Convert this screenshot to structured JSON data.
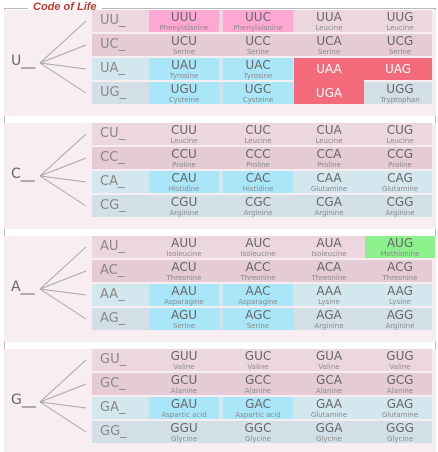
{
  "title": "Code of Life",
  "colors": {
    "phenylalanine": "#ffa8d4",
    "polar": "#a8e6f8",
    "stop": "#f36b7b",
    "start": "#8cf08c",
    "row_a": "#ecd7e0",
    "row_b": "#e4cbd6",
    "row_c": "#d2e7ee",
    "row_d": "#d3dfe6"
  },
  "blocks": [
    {
      "first": "U__",
      "rows": [
        {
          "prefix": "UU_",
          "cells": [
            {
              "codon": "UUU",
              "aa": "Phenylalanine"
            },
            {
              "codon": "UUC",
              "aa": "Phenylalanine"
            },
            {
              "codon": "UUA",
              "aa": "Leucine"
            },
            {
              "codon": "UUG",
              "aa": "Leucine"
            }
          ]
        },
        {
          "prefix": "UC_",
          "cells": [
            {
              "codon": "UCU",
              "aa": "Serine"
            },
            {
              "codon": "UCC",
              "aa": "Serine"
            },
            {
              "codon": "UCA",
              "aa": "Serine"
            },
            {
              "codon": "UCG",
              "aa": "Serine"
            }
          ]
        },
        {
          "prefix": "UA_",
          "cells": [
            {
              "codon": "UAU",
              "aa": "Tyrosine"
            },
            {
              "codon": "UAC",
              "aa": "Tyrosine"
            },
            {
              "codon": "UAA",
              "aa": ""
            },
            {
              "codon": "UAG",
              "aa": ""
            }
          ]
        },
        {
          "prefix": "UG_",
          "cells": [
            {
              "codon": "UGU",
              "aa": "Cysteine"
            },
            {
              "codon": "UGC",
              "aa": "Cysteine"
            },
            {
              "codon": "UGA",
              "aa": ""
            },
            {
              "codon": "UGG",
              "aa": "Tryptophan"
            }
          ]
        }
      ]
    },
    {
      "first": "C__",
      "rows": [
        {
          "prefix": "CU_",
          "cells": [
            {
              "codon": "CUU",
              "aa": "Leucine"
            },
            {
              "codon": "CUC",
              "aa": "Leucine"
            },
            {
              "codon": "CUA",
              "aa": "Leucine"
            },
            {
              "codon": "CUG",
              "aa": "Leucine"
            }
          ]
        },
        {
          "prefix": "CC_",
          "cells": [
            {
              "codon": "CCU",
              "aa": "Proline"
            },
            {
              "codon": "CCC",
              "aa": "Proline"
            },
            {
              "codon": "CCA",
              "aa": "Proline"
            },
            {
              "codon": "CCG",
              "aa": "Proline"
            }
          ]
        },
        {
          "prefix": "CA_",
          "cells": [
            {
              "codon": "CAU",
              "aa": "Histidine"
            },
            {
              "codon": "CAC",
              "aa": "Histidine"
            },
            {
              "codon": "CAA",
              "aa": "Glutamine"
            },
            {
              "codon": "CAG",
              "aa": "Glutamine"
            }
          ]
        },
        {
          "prefix": "CG_",
          "cells": [
            {
              "codon": "CGU",
              "aa": "Arginine"
            },
            {
              "codon": "CGC",
              "aa": "Arginine"
            },
            {
              "codon": "CGA",
              "aa": "Arginine"
            },
            {
              "codon": "CGG",
              "aa": "Arginine"
            }
          ]
        }
      ]
    },
    {
      "first": "A__",
      "rows": [
        {
          "prefix": "AU_",
          "cells": [
            {
              "codon": "AUU",
              "aa": "Isoleucine"
            },
            {
              "codon": "AUC",
              "aa": "Isoleucine"
            },
            {
              "codon": "AUA",
              "aa": "Isoleucine"
            },
            {
              "codon": "AUG",
              "aa": "Methionine"
            }
          ]
        },
        {
          "prefix": "AC_",
          "cells": [
            {
              "codon": "ACU",
              "aa": "Threonine"
            },
            {
              "codon": "ACC",
              "aa": "Threonine"
            },
            {
              "codon": "ACA",
              "aa": "Threonine"
            },
            {
              "codon": "ACG",
              "aa": "Threonine"
            }
          ]
        },
        {
          "prefix": "AA_",
          "cells": [
            {
              "codon": "AAU",
              "aa": "Asparagine"
            },
            {
              "codon": "AAC",
              "aa": "Asparagine"
            },
            {
              "codon": "AAA",
              "aa": "Lysine"
            },
            {
              "codon": "AAG",
              "aa": "Lysine"
            }
          ]
        },
        {
          "prefix": "AG_",
          "cells": [
            {
              "codon": "AGU",
              "aa": "Serine"
            },
            {
              "codon": "AGC",
              "aa": "Serine"
            },
            {
              "codon": "AGA",
              "aa": "Arginine"
            },
            {
              "codon": "AGG",
              "aa": "Arginine"
            }
          ]
        }
      ]
    },
    {
      "first": "G__",
      "rows": [
        {
          "prefix": "GU_",
          "cells": [
            {
              "codon": "GUU",
              "aa": "Valine"
            },
            {
              "codon": "GUC",
              "aa": "Valine"
            },
            {
              "codon": "GUA",
              "aa": "Valine"
            },
            {
              "codon": "GUG",
              "aa": "Valine"
            }
          ]
        },
        {
          "prefix": "GC_",
          "cells": [
            {
              "codon": "GCU",
              "aa": "Alanine"
            },
            {
              "codon": "GCC",
              "aa": "Alanine"
            },
            {
              "codon": "GCA",
              "aa": "Alanine"
            },
            {
              "codon": "GCG",
              "aa": "Alanine"
            }
          ]
        },
        {
          "prefix": "GA_",
          "cells": [
            {
              "codon": "GAU",
              "aa": "Aspartic acid"
            },
            {
              "codon": "GAC",
              "aa": "Aspartic acid"
            },
            {
              "codon": "GAA",
              "aa": "Glutamine"
            },
            {
              "codon": "GAG",
              "aa": "Glutamine"
            }
          ]
        },
        {
          "prefix": "GG_",
          "cells": [
            {
              "codon": "GGU",
              "aa": "Glycine"
            },
            {
              "codon": "GGC",
              "aa": "Glycine"
            },
            {
              "codon": "GGA",
              "aa": "Glycine"
            },
            {
              "codon": "GGG",
              "aa": "Glycine"
            }
          ]
        }
      ]
    }
  ]
}
